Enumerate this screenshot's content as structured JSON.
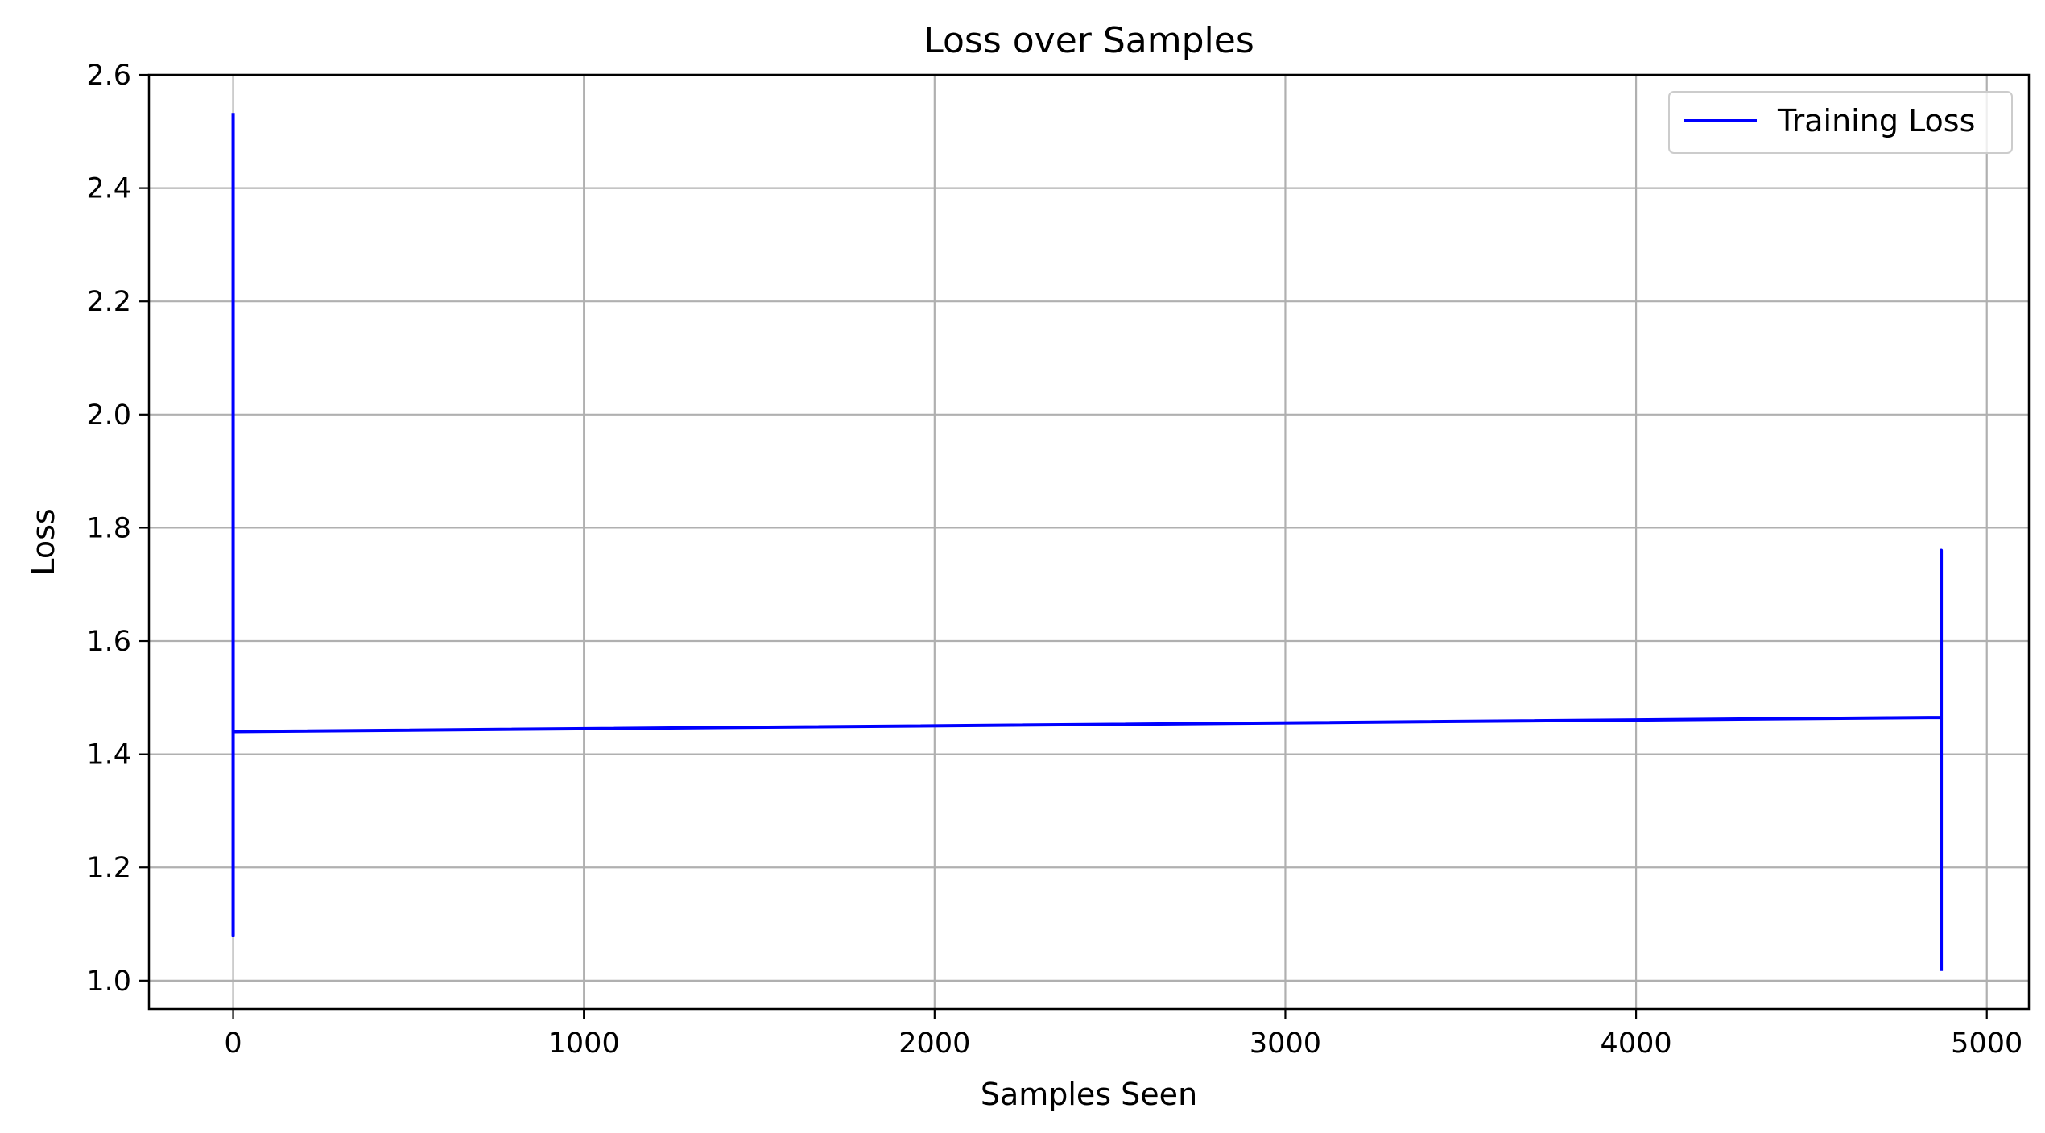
{
  "chart_data": {
    "type": "line",
    "title": "Loss over Samples",
    "xlabel": "Samples Seen",
    "ylabel": "Loss",
    "xlim": [
      -240,
      5120
    ],
    "ylim": [
      0.95,
      2.6
    ],
    "xticks": [
      0,
      1000,
      2000,
      3000,
      4000,
      5000
    ],
    "xtick_labels": [
      "0",
      "1000",
      "2000",
      "3000",
      "4000",
      "5000"
    ],
    "yticks": [
      1.0,
      1.2,
      1.4,
      1.6,
      1.8,
      2.0,
      2.2,
      2.4,
      2.6
    ],
    "ytick_labels": [
      "1.0",
      "1.2",
      "1.4",
      "1.6",
      "1.8",
      "2.0",
      "2.2",
      "2.4",
      "2.6"
    ],
    "grid": true,
    "legend_position": "top-right",
    "series": [
      {
        "name": "Training Loss",
        "color": "#0000ff",
        "x": [
          0,
          0,
          0,
          0,
          0,
          0,
          4870,
          4870,
          4870,
          4870,
          4870,
          4870
        ],
        "y": [
          2.53,
          1.08,
          2.2,
          1.3,
          1.6,
          1.44,
          1.465,
          1.76,
          1.38,
          1.6,
          1.25,
          1.02
        ]
      }
    ]
  }
}
